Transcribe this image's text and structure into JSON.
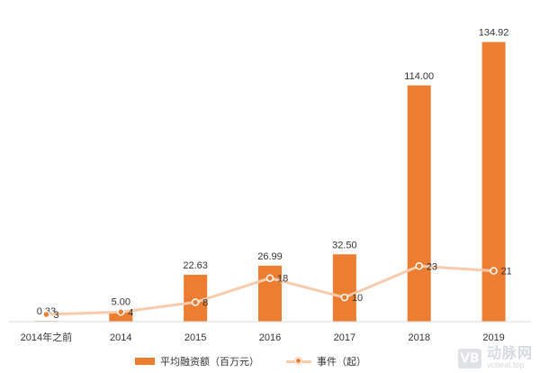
{
  "chart_data": {
    "type": "bar",
    "categories": [
      "2014年之前",
      "2014",
      "2015",
      "2016",
      "2017",
      "2018",
      "2019"
    ],
    "series": [
      {
        "name": "平均融资额（百万元）",
        "type": "bar",
        "values": [
          0.33,
          5.0,
          22.63,
          26.99,
          32.5,
          114.0,
          134.92
        ],
        "labels": [
          "0.33",
          "5.00",
          "22.63",
          "26.99",
          "32.50",
          "114.00",
          "134.92"
        ],
        "color": "#ED7D31"
      },
      {
        "name": "事件（起）",
        "type": "line",
        "values": [
          3,
          4,
          8,
          18,
          10,
          23,
          21
        ],
        "labels": [
          "3",
          "4",
          "8",
          "18",
          "10",
          "23",
          "21"
        ],
        "color": "#F8CBAD",
        "marker_color": "#ED7D31"
      }
    ],
    "title": "",
    "xlabel": "",
    "ylabel": "",
    "bar_ylim": [
      0,
      140
    ],
    "line_ylim": [
      0,
      120
    ],
    "grid": false,
    "legend_position": "bottom"
  },
  "legend": {
    "bar_label": "平均融资额（百万元）",
    "line_label": "事件（起）"
  },
  "watermark": {
    "logo": "VB",
    "cn": "动脉网",
    "en": "vcbeat.top"
  }
}
